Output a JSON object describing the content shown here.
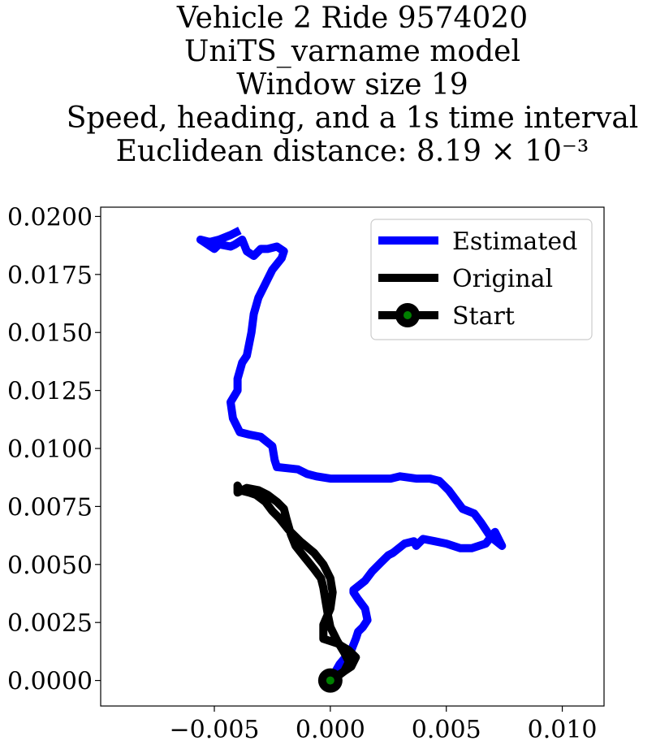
{
  "chart_data": {
    "type": "line",
    "title_lines": [
      "Vehicle 2 Ride 9574020",
      "UniTS_varname model",
      "Window size 19",
      "Speed, heading, and a 1s time interval",
      "Euclidean distance: 8.19 × 10⁻³"
    ],
    "xlim": [
      -0.0099,
      0.0118
    ],
    "ylim": [
      -0.0011,
      0.0204
    ],
    "x_ticks": [
      -0.005,
      0.0,
      0.005,
      0.01
    ],
    "x_tick_labels": [
      "−0.005",
      "0.000",
      "0.005",
      "0.010"
    ],
    "y_ticks": [
      0.0,
      0.0025,
      0.005,
      0.0075,
      0.01,
      0.0125,
      0.015,
      0.0175,
      0.02
    ],
    "y_tick_labels": [
      "0.0000",
      "0.0025",
      "0.0050",
      "0.0075",
      "0.0100",
      "0.0125",
      "0.0150",
      "0.0175",
      "0.0200"
    ],
    "legend_position": "top-right",
    "colors": {
      "estimated": "#0000ff",
      "original": "#000000",
      "start_outer": "#000000",
      "start_inner": "#008000"
    },
    "series": [
      {
        "name": "Estimated",
        "x": [
          0.0,
          0.0004,
          0.0009,
          0.0011,
          0.0012,
          0.0014,
          0.0016,
          0.0015,
          0.0012,
          0.001,
          0.001,
          0.0015,
          0.0018,
          0.0022,
          0.0025,
          0.0027,
          0.0032,
          0.0036,
          0.0037,
          0.004,
          0.0045,
          0.005,
          0.0056,
          0.0061,
          0.0067,
          0.0071,
          0.0074,
          0.0069,
          0.0065,
          0.0062,
          0.0057,
          0.0054,
          0.0051,
          0.0047,
          0.0043,
          0.0037,
          0.003,
          0.0026,
          0.002,
          0.001,
          0.0,
          -0.0006,
          -0.001,
          -0.0014,
          -0.0023,
          -0.0024,
          -0.0025,
          -0.003,
          -0.0035,
          -0.0039,
          -0.0042,
          -0.0043,
          -0.004,
          -0.004,
          -0.0038,
          -0.0036,
          -0.0034,
          -0.0033,
          -0.0031,
          -0.0028,
          -0.0025,
          -0.0021,
          -0.002,
          -0.0023,
          -0.0027,
          -0.003,
          -0.0033,
          -0.0036,
          -0.0038,
          -0.0041,
          -0.0043,
          -0.0048,
          -0.005,
          -0.0056,
          -0.0052,
          -0.0048,
          -0.0043,
          -0.0039
        ],
        "y": [
          0.0,
          0.0007,
          0.0013,
          0.0018,
          0.0021,
          0.0023,
          0.0026,
          0.0031,
          0.0035,
          0.0038,
          0.0039,
          0.0043,
          0.0047,
          0.0051,
          0.0054,
          0.0055,
          0.0059,
          0.006,
          0.0058,
          0.0061,
          0.006,
          0.0059,
          0.0057,
          0.0057,
          0.0059,
          0.0064,
          0.0058,
          0.0062,
          0.0068,
          0.0072,
          0.0074,
          0.0078,
          0.0082,
          0.0086,
          0.0087,
          0.0087,
          0.0088,
          0.0087,
          0.0087,
          0.0087,
          0.0087,
          0.0088,
          0.0089,
          0.0091,
          0.0092,
          0.0095,
          0.0101,
          0.0105,
          0.0106,
          0.0107,
          0.0113,
          0.012,
          0.0125,
          0.013,
          0.0137,
          0.014,
          0.015,
          0.0158,
          0.0165,
          0.0171,
          0.0177,
          0.0182,
          0.0185,
          0.0187,
          0.0186,
          0.0186,
          0.0183,
          0.0185,
          0.019,
          0.0188,
          0.0187,
          0.0188,
          0.0186,
          0.019,
          0.0189,
          0.019,
          0.0192,
          0.0194
        ]
      },
      {
        "name": "Original",
        "x": [
          0.0,
          0.0009,
          0.0011,
          0.0008,
          0.0003,
          -0.0003,
          -0.0003,
          0.0,
          0.0001,
          0.0,
          -0.0003,
          -0.0007,
          -0.0013,
          -0.0018,
          -0.0022,
          -0.0025,
          -0.0028,
          -0.0032,
          -0.0035,
          -0.0039,
          -0.004,
          -0.004,
          -0.004,
          -0.0036,
          -0.0031,
          -0.0027,
          -0.0023,
          -0.002,
          -0.0019,
          -0.0017,
          -0.0015,
          -0.0011,
          -0.0007,
          -0.0004,
          -0.0003,
          -0.0002,
          -0.0001,
          0.0,
          0.0003,
          0.0006,
          0.0008,
          0.0006,
          0.0002,
          0.0
        ],
        "y": [
          0.0,
          0.0006,
          0.001,
          0.0013,
          0.0016,
          0.0018,
          0.0024,
          0.0031,
          0.0038,
          0.0044,
          0.005,
          0.0055,
          0.006,
          0.0065,
          0.007,
          0.0073,
          0.0077,
          0.008,
          0.0081,
          0.0082,
          0.0084,
          0.0083,
          0.0081,
          0.0083,
          0.0082,
          0.008,
          0.0077,
          0.0074,
          0.007,
          0.0063,
          0.0058,
          0.0053,
          0.0048,
          0.0044,
          0.004,
          0.0034,
          0.0028,
          0.0023,
          0.0017,
          0.0012,
          0.0008,
          0.0004,
          0.0001,
          0.0
        ]
      }
    ],
    "start_point": {
      "name": "Start",
      "x": 0.0,
      "y": 0.0
    }
  }
}
